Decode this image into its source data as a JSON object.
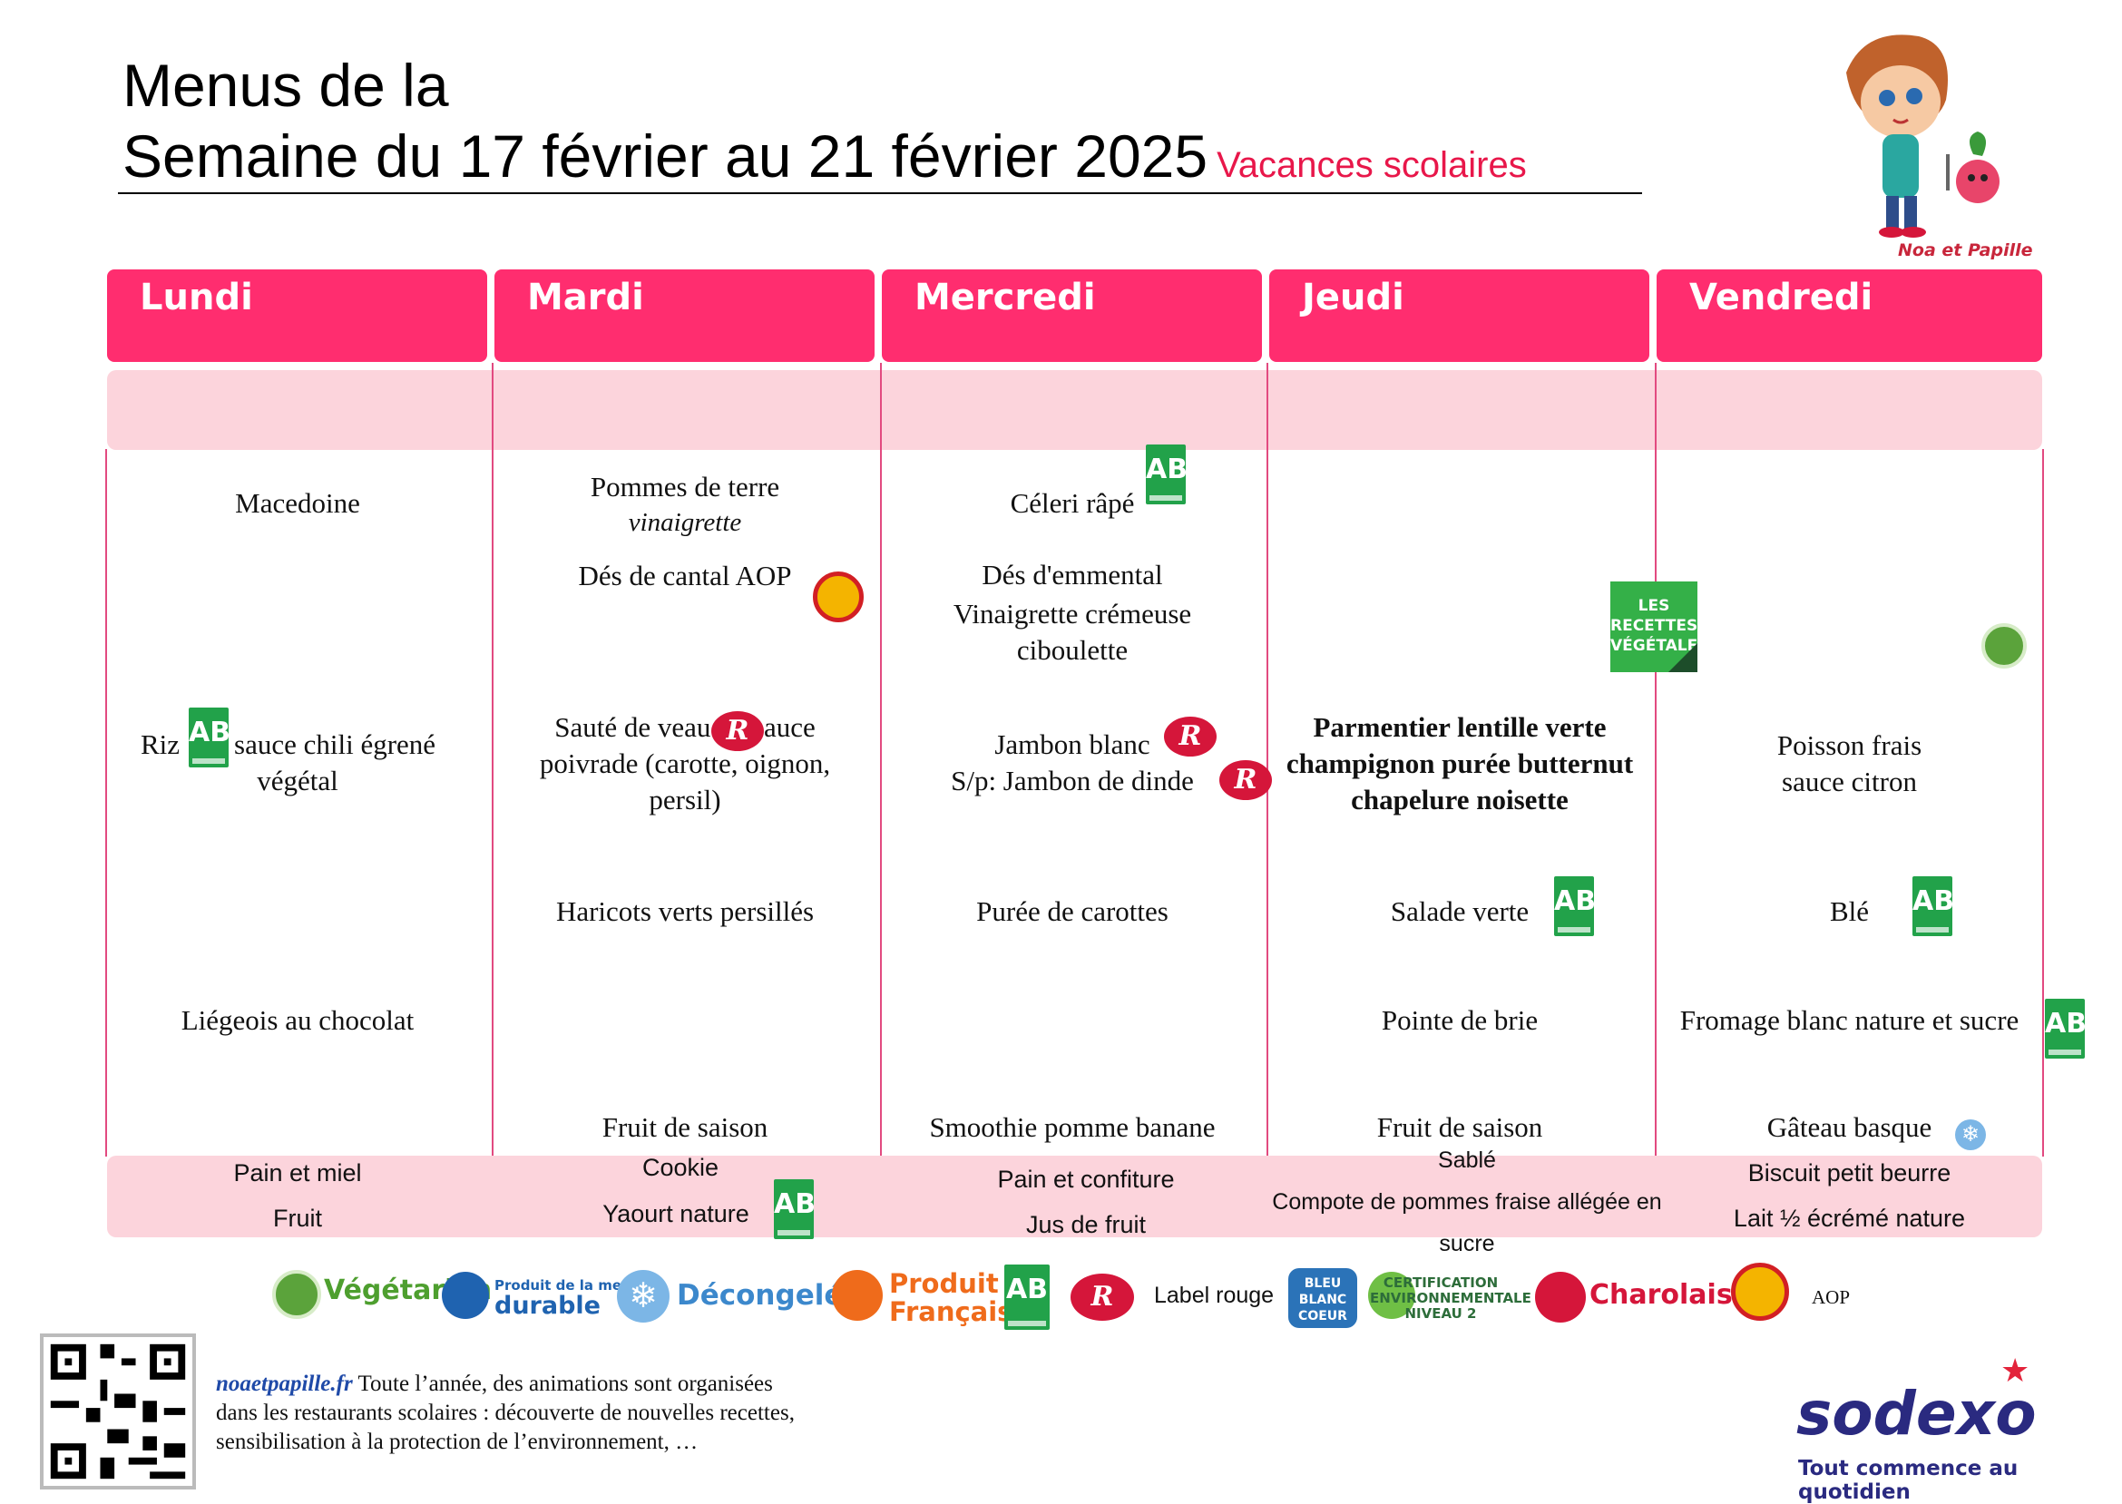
{
  "header": {
    "title_line1": "Menus de la",
    "title_line2": "Semaine du 17 février au 21 février 2025",
    "note": "Vacances scolaires"
  },
  "mascot": {
    "name": "Noa et Papille"
  },
  "days": [
    "Lundi",
    "Mardi",
    "Mercredi",
    "Jeudi",
    "Vendredi"
  ],
  "menu": {
    "lundi": {
      "entree": "Macedoine",
      "plat_1": "Riz",
      "plat_2": "sauce chili égrené",
      "plat_3": "végétal",
      "dessert": "Liégeois au chocolat",
      "gouter_1": "Pain et  miel",
      "gouter_2": "Fruit"
    },
    "mardi": {
      "entree": "Pommes de terre",
      "entree_sauce": "vinaigrette",
      "fromage": "Dés de cantal AOP",
      "plat_1": "Sauté de veau      sauce",
      "plat_2": "poivrade (carotte, oignon,",
      "plat_3": "persil)",
      "accompagnement": "Haricots verts persillés",
      "dessert": "Fruit de saison",
      "gouter_1": "Cookie",
      "gouter_2": "Yaourt nature"
    },
    "mercredi": {
      "entree": "Céleri râpé",
      "fromage_1": "Dés d'emmental",
      "fromage_2": "Vinaigrette crémeuse",
      "fromage_3": "ciboulette",
      "plat_1": "Jambon blanc",
      "plat_2": "S/p: Jambon de dinde",
      "accompagnement": "Purée de carottes",
      "dessert": "Smoothie pomme banane",
      "gouter_1": "Pain et confiture",
      "gouter_2": "Jus de fruit"
    },
    "jeudi": {
      "badge": "LES RECETTES VÉGÉTALES",
      "plat_1": "Parmentier lentille verte",
      "plat_2": "champignon purée butternut",
      "plat_3": "chapelure noisette",
      "accompagnement": "Salade verte",
      "fromage": "Pointe de brie",
      "dessert": "Fruit de saison",
      "gouter_1": "Sablé",
      "gouter_2": "Compote de pommes fraise allégée en",
      "gouter_3": "sucre"
    },
    "vendredi": {
      "plat_1": "Poisson frais",
      "plat_2": "sauce citron",
      "accompagnement": "Blé",
      "laitage": "Fromage blanc nature et sucre",
      "dessert": "Gâteau basque",
      "gouter_1": "Biscuit petit beurre",
      "gouter_2": "Lait ½ écrémé nature"
    }
  },
  "icons": {
    "ab": "AB",
    "label_rouge": "R",
    "snowflake": "❄"
  },
  "legend": {
    "vegetarien": "Végétarien",
    "mer_durable_1": "Produit de la mer",
    "mer_durable_2": "durable",
    "decongele": "Décongelé",
    "produit_francais_1": "Produit",
    "produit_francais_2": "Français",
    "label_rouge": "Label rouge",
    "bleu_blanc_coeur": "BLEU BLANC COEUR",
    "certification_1": "CERTIFICATION",
    "certification_2": "ENVIRONNEMENTALE",
    "certification_3": "NIVEAU 2",
    "charolais": "Charolais",
    "aop": "AOP"
  },
  "footer": {
    "site": "noaetpapille.fr",
    "text_1": " Toute l’année, des animations sont organisées",
    "text_2": "dans les restaurants scolaires : découverte de nouvelles recettes,",
    "text_3": "sensibilisation à la protection de l’environnement, …",
    "brand": "sodexo",
    "slogan": "Tout commence au quotidien"
  },
  "colors": {
    "day_header": "#ff2d6f",
    "band": "#fcd4dc",
    "column_line": "#e24a80",
    "note": "#e8174a",
    "bio_green": "#22a24a",
    "label_rouge": "#d5163a",
    "brand": "#2a2a80"
  }
}
